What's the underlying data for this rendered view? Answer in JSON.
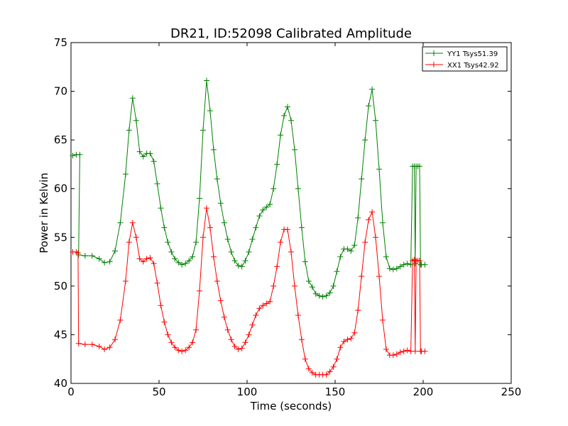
{
  "chart_data": {
    "type": "line",
    "title": "DR21, ID:52098 Calibrated Amplitude",
    "xlabel": "Time (seconds)",
    "ylabel": "Power in Kelvin",
    "xlim": [
      0,
      250
    ],
    "ylim": [
      40,
      75
    ],
    "xticks": [
      0,
      50,
      100,
      150,
      200,
      250
    ],
    "yticks": [
      40,
      45,
      50,
      55,
      60,
      65,
      70,
      75
    ],
    "grid": false,
    "legend_position": "top-right",
    "series": [
      {
        "name": "YY1 Tsys51.39",
        "color": "#008000",
        "marker": "+",
        "points": [
          [
            1,
            63.4
          ],
          [
            3,
            63.5
          ],
          [
            5,
            63.5
          ],
          [
            4.3,
            53.2
          ],
          [
            8,
            53.1
          ],
          [
            12,
            53.1
          ],
          [
            16,
            52.8
          ],
          [
            19,
            52.4
          ],
          [
            22,
            52.5
          ],
          [
            25,
            53.6
          ],
          [
            28,
            56.5
          ],
          [
            31,
            61.5
          ],
          [
            33,
            66
          ],
          [
            35,
            69.3
          ],
          [
            37,
            67
          ],
          [
            39,
            63.8
          ],
          [
            41,
            63.3
          ],
          [
            43,
            63.6
          ],
          [
            45,
            63.6
          ],
          [
            47,
            62.8
          ],
          [
            49,
            60.5
          ],
          [
            51,
            58
          ],
          [
            53,
            56
          ],
          [
            55,
            54.5
          ],
          [
            57,
            53.5
          ],
          [
            59,
            52.8
          ],
          [
            61,
            52.4
          ],
          [
            63,
            52.2
          ],
          [
            65,
            52.3
          ],
          [
            67,
            52.6
          ],
          [
            69,
            53
          ],
          [
            71,
            54.5
          ],
          [
            73,
            59
          ],
          [
            75,
            66
          ],
          [
            77,
            71.1
          ],
          [
            79,
            68
          ],
          [
            81,
            64
          ],
          [
            83,
            61
          ],
          [
            85,
            58.5
          ],
          [
            87,
            56.5
          ],
          [
            89,
            54.8
          ],
          [
            91,
            53.5
          ],
          [
            93,
            52.6
          ],
          [
            95,
            52.1
          ],
          [
            97,
            52
          ],
          [
            99,
            52.6
          ],
          [
            101,
            53.5
          ],
          [
            103,
            54.8
          ],
          [
            105,
            56
          ],
          [
            107,
            57.2
          ],
          [
            109,
            57.8
          ],
          [
            111,
            58.1
          ],
          [
            113,
            58.4
          ],
          [
            115,
            60
          ],
          [
            117,
            62.5
          ],
          [
            119,
            65.5
          ],
          [
            121,
            67.5
          ],
          [
            123,
            68.4
          ],
          [
            125,
            67
          ],
          [
            127,
            64
          ],
          [
            129,
            60
          ],
          [
            131,
            56
          ],
          [
            133,
            52.5
          ],
          [
            135,
            50.5
          ],
          [
            137,
            49.9
          ],
          [
            139,
            49.2
          ],
          [
            141,
            49
          ],
          [
            143,
            48.9
          ],
          [
            145,
            49
          ],
          [
            147,
            49.3
          ],
          [
            149,
            50
          ],
          [
            151,
            51.5
          ],
          [
            153,
            53
          ],
          [
            155,
            53.8
          ],
          [
            157,
            53.8
          ],
          [
            159,
            53.6
          ],
          [
            161,
            54.2
          ],
          [
            163,
            57
          ],
          [
            165,
            61
          ],
          [
            167,
            65
          ],
          [
            169,
            68.5
          ],
          [
            171,
            70.2
          ],
          [
            173,
            67
          ],
          [
            175,
            62
          ],
          [
            177,
            56.5
          ],
          [
            179,
            53
          ],
          [
            181,
            51.8
          ],
          [
            183,
            51.7
          ],
          [
            185,
            51.8
          ],
          [
            187,
            52
          ],
          [
            189,
            52.2
          ],
          [
            191,
            52.3
          ],
          [
            193,
            52.2
          ],
          [
            194,
            62.3
          ],
          [
            195,
            62.3
          ],
          [
            195.5,
            52.3
          ],
          [
            196,
            62.3
          ],
          [
            197,
            62.3
          ],
          [
            198,
            62.3
          ],
          [
            198.5,
            52.2
          ],
          [
            199,
            52.2
          ],
          [
            201,
            52.2
          ]
        ]
      },
      {
        "name": "XX1 Tsys42.92",
        "color": "#ff0000",
        "marker": "+",
        "points": [
          [
            1,
            53.5
          ],
          [
            3,
            53.5
          ],
          [
            4,
            53.4
          ],
          [
            4.3,
            44.1
          ],
          [
            8,
            44
          ],
          [
            12,
            44
          ],
          [
            16,
            43.8
          ],
          [
            19,
            43.5
          ],
          [
            22,
            43.7
          ],
          [
            25,
            44.5
          ],
          [
            28,
            46.5
          ],
          [
            31,
            50.5
          ],
          [
            33,
            54.5
          ],
          [
            35,
            56.5
          ],
          [
            37,
            55
          ],
          [
            39,
            52.8
          ],
          [
            41,
            52.5
          ],
          [
            43,
            52.8
          ],
          [
            45,
            52.9
          ],
          [
            47,
            52.3
          ],
          [
            49,
            50.3
          ],
          [
            51,
            48
          ],
          [
            53,
            46.3
          ],
          [
            55,
            45
          ],
          [
            57,
            44.2
          ],
          [
            59,
            43.7
          ],
          [
            61,
            43.4
          ],
          [
            63,
            43.3
          ],
          [
            65,
            43.4
          ],
          [
            67,
            43.7
          ],
          [
            69,
            44.2
          ],
          [
            71,
            45.5
          ],
          [
            73,
            49.5
          ],
          [
            75,
            55
          ],
          [
            77,
            58
          ],
          [
            79,
            56
          ],
          [
            81,
            53
          ],
          [
            83,
            50.5
          ],
          [
            85,
            48.5
          ],
          [
            87,
            46.8
          ],
          [
            89,
            45.5
          ],
          [
            91,
            44.5
          ],
          [
            93,
            43.8
          ],
          [
            95,
            43.5
          ],
          [
            97,
            43.6
          ],
          [
            99,
            44.2
          ],
          [
            101,
            45
          ],
          [
            103,
            46
          ],
          [
            105,
            47
          ],
          [
            107,
            47.7
          ],
          [
            109,
            48
          ],
          [
            111,
            48.2
          ],
          [
            113,
            48.4
          ],
          [
            115,
            50
          ],
          [
            117,
            52
          ],
          [
            119,
            54.5
          ],
          [
            121,
            55.8
          ],
          [
            123,
            55.8
          ],
          [
            125,
            53.5
          ],
          [
            127,
            50
          ],
          [
            129,
            47
          ],
          [
            131,
            44.5
          ],
          [
            133,
            42.5
          ],
          [
            135,
            41.5
          ],
          [
            137,
            41.1
          ],
          [
            139,
            40.9
          ],
          [
            141,
            40.9
          ],
          [
            143,
            40.9
          ],
          [
            145,
            40.9
          ],
          [
            147,
            41.2
          ],
          [
            149,
            41.7
          ],
          [
            151,
            42.5
          ],
          [
            153,
            43.7
          ],
          [
            155,
            44.3
          ],
          [
            157,
            44.5
          ],
          [
            159,
            44.6
          ],
          [
            161,
            45.2
          ],
          [
            163,
            47.5
          ],
          [
            165,
            51
          ],
          [
            167,
            54.5
          ],
          [
            169,
            56.8
          ],
          [
            171,
            57.6
          ],
          [
            173,
            55
          ],
          [
            175,
            51
          ],
          [
            177,
            46.5
          ],
          [
            179,
            43.5
          ],
          [
            181,
            42.9
          ],
          [
            183,
            42.9
          ],
          [
            185,
            43
          ],
          [
            187,
            43.2
          ],
          [
            189,
            43.3
          ],
          [
            191,
            43.4
          ],
          [
            193,
            43.3
          ],
          [
            194,
            52.6
          ],
          [
            195,
            52.7
          ],
          [
            195.5,
            43.3
          ],
          [
            196,
            52.6
          ],
          [
            197,
            52.6
          ],
          [
            198,
            52.6
          ],
          [
            198.5,
            43.3
          ],
          [
            199,
            43.3
          ],
          [
            201,
            43.3
          ]
        ]
      }
    ]
  }
}
